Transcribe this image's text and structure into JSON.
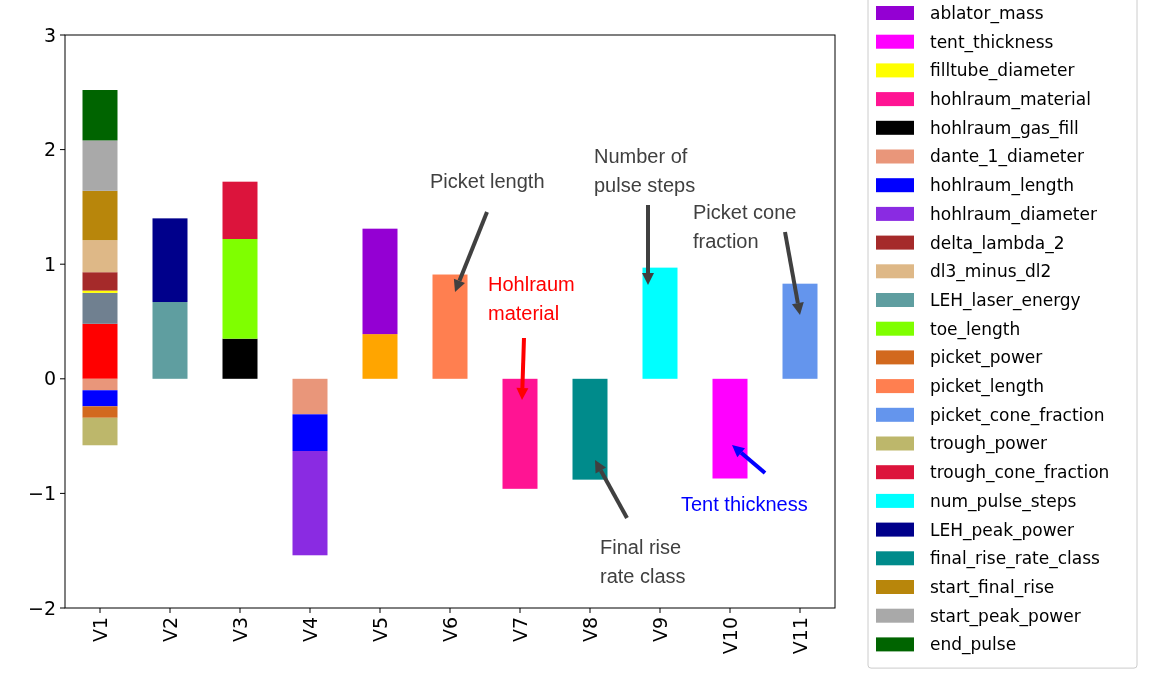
{
  "chart_data": {
    "type": "bar",
    "stacked": true,
    "categories": [
      "V1",
      "V2",
      "V3",
      "V4",
      "V5",
      "V6",
      "V7",
      "V8",
      "V9",
      "V10",
      "V11"
    ],
    "ylim": [
      -2,
      3
    ],
    "yticks": [
      -2,
      -1,
      0,
      1,
      2,
      3
    ],
    "legend": "right",
    "grid": false,
    "series": [
      {
        "color": "#ff0000",
        "values": [
          0.48,
          null,
          null,
          null,
          null,
          null,
          null,
          null,
          null,
          null,
          null
        ]
      },
      {
        "color": "#708090",
        "values": [
          0.27,
          null,
          null,
          null,
          null,
          null,
          null,
          null,
          null,
          null,
          null
        ]
      },
      {
        "color": "#ffa500",
        "values": [
          null,
          null,
          null,
          null,
          0.39,
          null,
          null,
          null,
          null,
          null,
          null
        ]
      },
      {
        "name": "ablator_mass",
        "color": "#9400d3",
        "values": [
          null,
          null,
          null,
          null,
          0.92,
          null,
          null,
          null,
          null,
          null,
          null
        ]
      },
      {
        "name": "tent_thickness",
        "color": "#ff00ff",
        "values": [
          null,
          null,
          null,
          null,
          null,
          null,
          null,
          null,
          null,
          -0.87,
          null
        ]
      },
      {
        "name": "filltube_diameter",
        "color": "#ffff00",
        "values": [
          0.02,
          null,
          null,
          null,
          null,
          null,
          null,
          null,
          null,
          null,
          null
        ]
      },
      {
        "name": "hohlraum_material",
        "color": "#ff1493",
        "values": [
          null,
          null,
          null,
          null,
          null,
          null,
          -0.96,
          null,
          null,
          null,
          null
        ]
      },
      {
        "name": "hohlraum_gas_fill",
        "color": "#000000",
        "values": [
          null,
          null,
          0.35,
          null,
          null,
          null,
          null,
          null,
          null,
          null,
          null
        ]
      },
      {
        "name": "dante_1_diameter",
        "color": "#e9967a",
        "values": [
          -0.1,
          null,
          null,
          -0.31,
          null,
          null,
          null,
          null,
          null,
          null,
          null
        ]
      },
      {
        "name": "hohlraum_length",
        "color": "#0000ff",
        "values": [
          -0.14,
          null,
          null,
          -0.32,
          null,
          null,
          null,
          null,
          null,
          null,
          null
        ]
      },
      {
        "name": "hohlraum_diameter",
        "color": "#8a2be2",
        "values": [
          null,
          null,
          null,
          -0.91,
          null,
          null,
          null,
          null,
          null,
          null,
          null
        ]
      },
      {
        "name": "delta_lambda_2",
        "color": "#a52a2a",
        "values": [
          0.16,
          null,
          null,
          null,
          null,
          null,
          null,
          null,
          null,
          null,
          null
        ]
      },
      {
        "name": "dl3_minus_dl2",
        "color": "#deb887",
        "values": [
          0.28,
          null,
          null,
          null,
          null,
          null,
          null,
          null,
          null,
          null,
          null
        ]
      },
      {
        "name": "LEH_laser_energy",
        "color": "#5f9ea0",
        "values": [
          null,
          0.67,
          null,
          null,
          null,
          null,
          null,
          null,
          null,
          null,
          null
        ]
      },
      {
        "name": "toe_length",
        "color": "#7fff00",
        "values": [
          null,
          null,
          0.87,
          null,
          null,
          null,
          null,
          null,
          null,
          null,
          null
        ]
      },
      {
        "name": "picket_power",
        "color": "#d2691e",
        "values": [
          -0.1,
          null,
          null,
          null,
          null,
          null,
          null,
          null,
          null,
          null,
          null
        ]
      },
      {
        "name": "picket_length",
        "color": "#ff7f50",
        "values": [
          null,
          null,
          null,
          null,
          null,
          0.91,
          null,
          null,
          null,
          null,
          null
        ]
      },
      {
        "name": "picket_cone_fraction",
        "color": "#6495ed",
        "values": [
          null,
          null,
          null,
          null,
          null,
          null,
          null,
          null,
          null,
          null,
          0.83
        ]
      },
      {
        "name": "trough_power",
        "color": "#bdb76b",
        "values": [
          -0.24,
          null,
          null,
          null,
          null,
          null,
          null,
          null,
          null,
          null,
          null
        ]
      },
      {
        "name": "trough_cone_fraction",
        "color": "#dc143c",
        "values": [
          null,
          null,
          0.5,
          null,
          null,
          null,
          null,
          null,
          null,
          null,
          null
        ]
      },
      {
        "name": "num_pulse_steps",
        "color": "#00ffff",
        "values": [
          null,
          null,
          null,
          null,
          null,
          null,
          null,
          null,
          0.97,
          null,
          null
        ]
      },
      {
        "name": "LEH_peak_power",
        "color": "#00008b",
        "values": [
          null,
          0.73,
          null,
          null,
          null,
          null,
          null,
          null,
          null,
          null,
          null
        ]
      },
      {
        "name": "final_rise_rate_class",
        "color": "#008b8b",
        "values": [
          null,
          null,
          null,
          null,
          null,
          null,
          null,
          -0.88,
          null,
          null,
          null
        ]
      },
      {
        "name": "start_final_rise",
        "color": "#b8860b",
        "values": [
          0.43,
          null,
          null,
          null,
          null,
          null,
          null,
          null,
          null,
          null,
          null
        ]
      },
      {
        "name": "start_peak_power",
        "color": "#a9a9a9",
        "values": [
          0.44,
          null,
          null,
          null,
          null,
          null,
          null,
          null,
          null,
          null,
          null
        ]
      },
      {
        "name": "end_pulse",
        "color": "#006400",
        "values": [
          0.44,
          null,
          null,
          null,
          null,
          null,
          null,
          null,
          null,
          null,
          null
        ]
      }
    ],
    "annotations": [
      "Picket length",
      "Hohlraum material",
      "Final rise rate class",
      "Number of pulse steps",
      "Picket cone fraction",
      "Tent thickness"
    ]
  }
}
